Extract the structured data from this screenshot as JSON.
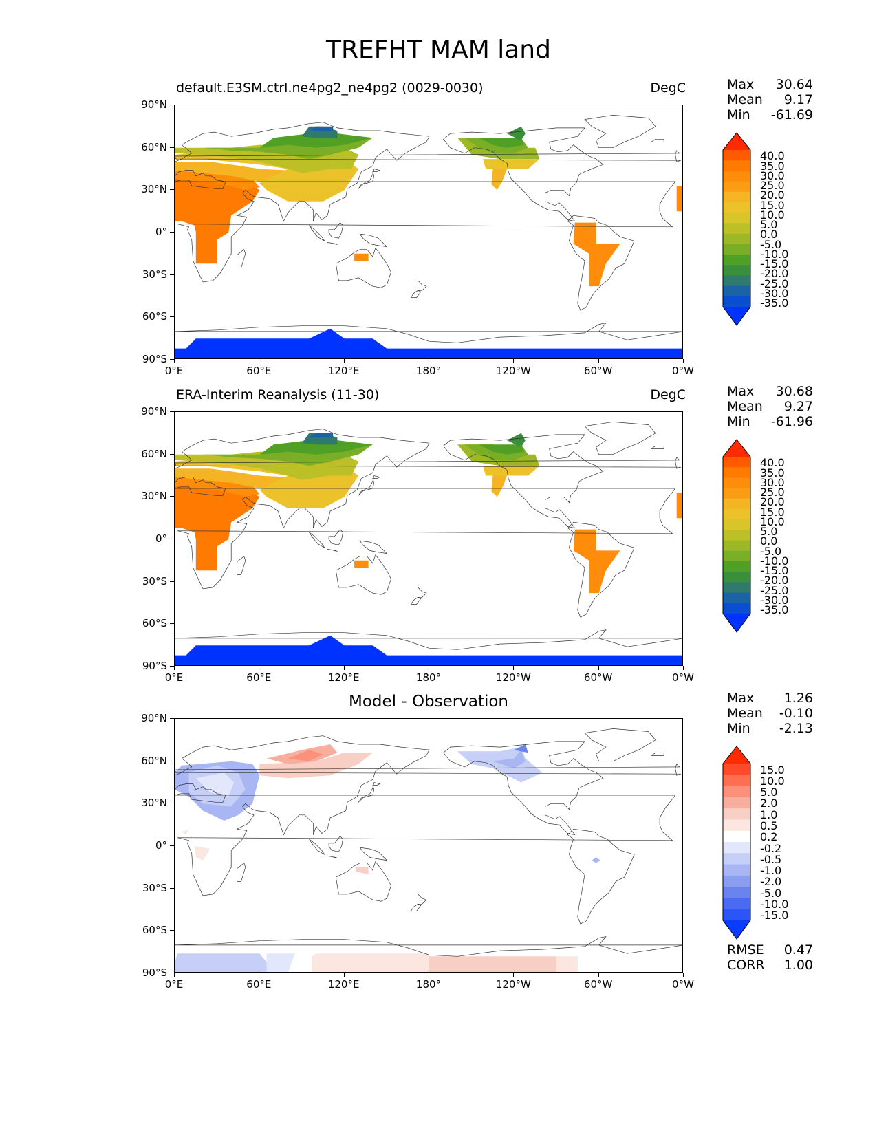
{
  "figure_title": "TREFHT MAM land",
  "x_ticks": [
    "0°E",
    "60°E",
    "120°E",
    "180°",
    "120°W",
    "60°W",
    "0°W"
  ],
  "y_ticks": [
    "90°N",
    "60°N",
    "30°N",
    "0°",
    "30°S",
    "60°S",
    "90°S"
  ],
  "panels": [
    {
      "title": "default.E3SM.ctrl.ne4pg2_ne4pg2 (0029-0030)",
      "units": "DegC",
      "stats": {
        "max_label": "Max",
        "max": "30.64",
        "mean_label": "Mean",
        "mean": "9.17",
        "min_label": "Min",
        "min": "-61.69"
      },
      "colorbar": {
        "type": "abs",
        "labels": [
          "40.0",
          "35.0",
          "30.0",
          "25.0",
          "20.0",
          "15.0",
          "10.0",
          "5.0",
          "0.0",
          "-5.0",
          "-10.0",
          "-15.0",
          "-20.0",
          "-25.0",
          "-30.0",
          "-35.0"
        ]
      }
    },
    {
      "title": "ERA-Interim Reanalysis (11-30)",
      "units": "DegC",
      "stats": {
        "max_label": "Max",
        "max": "30.68",
        "mean_label": "Mean",
        "mean": "9.27",
        "min_label": "Min",
        "min": "-61.96"
      },
      "colorbar": {
        "type": "abs",
        "labels": [
          "40.0",
          "35.0",
          "30.0",
          "25.0",
          "20.0",
          "15.0",
          "10.0",
          "5.0",
          "0.0",
          "-5.0",
          "-10.0",
          "-15.0",
          "-20.0",
          "-25.0",
          "-30.0",
          "-35.0"
        ]
      }
    },
    {
      "title": "Model - Observation",
      "units": "",
      "stats": {
        "max_label": "Max",
        "max": "1.26",
        "mean_label": "Mean",
        "mean": "-0.10",
        "min_label": "Min",
        "min": "-2.13"
      },
      "colorbar": {
        "type": "diff",
        "labels": [
          "15.0",
          "10.0",
          "5.0",
          "2.0",
          "1.0",
          "0.5",
          "0.2",
          "-0.2",
          "-0.5",
          "-1.0",
          "-2.0",
          "-5.0",
          "-10.0",
          "-15.0"
        ]
      },
      "metrics": {
        "rmse_label": "RMSE",
        "rmse": "0.47",
        "corr_label": "CORR",
        "corr": "1.00"
      }
    }
  ],
  "colors": {
    "abs_scale": [
      "#ff2a00",
      "#ff5a00",
      "#ff7a00",
      "#ff8c0a",
      "#fb9d14",
      "#f5b423",
      "#ecc22a",
      "#d9c42a",
      "#bdbf26",
      "#9cb826",
      "#79ae26",
      "#4fa024",
      "#3a8f3c",
      "#2f7a6c",
      "#1b62a6",
      "#0a4fd2",
      "#0033ff"
    ],
    "diff_scale": [
      "#ff2a00",
      "#ff4a2a",
      "#ff6e50",
      "#fb917a",
      "#f8ae9e",
      "#f7cfc4",
      "#fbe6e0",
      "#ffffff",
      "#e2e7fb",
      "#c5cff7",
      "#a8b6f3",
      "#8a9df0",
      "#6a84ee",
      "#4a6af3",
      "#2b55f7",
      "#0a3cff"
    ],
    "antarctic": "#0033ff"
  }
}
